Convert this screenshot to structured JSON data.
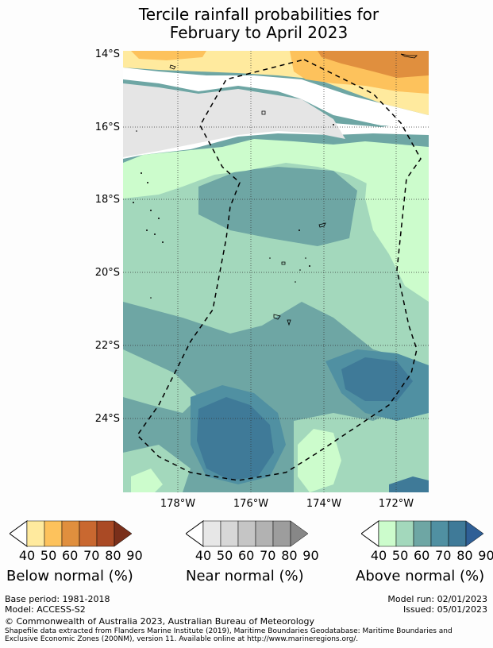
{
  "title": {
    "line1": "Tercile rainfall probabilities for",
    "line2": "February to April 2023"
  },
  "map": {
    "lat_labels": [
      "14°S",
      "16°S",
      "18°S",
      "20°S",
      "22°S",
      "24°S"
    ],
    "lon_labels": [
      "178°W",
      "176°W",
      "174°W",
      "172°W"
    ]
  },
  "legends": [
    {
      "title": "Below normal (%)",
      "ticks": [
        "40",
        "50",
        "60",
        "70",
        "80",
        "90"
      ],
      "colors": [
        "#ffea9e",
        "#fdc25c",
        "#e08f3e",
        "#c96830",
        "#aa4a25",
        "#7a2f1a"
      ]
    },
    {
      "title": "Near normal (%)",
      "ticks": [
        "40",
        "50",
        "60",
        "70",
        "80",
        "90"
      ],
      "colors": [
        "#e7e7e7",
        "#d7d7d7",
        "#c5c5c5",
        "#b2b2b2",
        "#9d9d9d",
        "#878787"
      ]
    },
    {
      "title": "Above normal (%)",
      "ticks": [
        "40",
        "50",
        "60",
        "70",
        "80",
        "90"
      ],
      "colors": [
        "#ccfccc",
        "#a3d8bc",
        "#6ea6a4",
        "#5090a2",
        "#3f7a98",
        "#2f5f96"
      ]
    }
  ],
  "footer": {
    "base_period": "Base period: 1981-2018",
    "model": "Model: ACCESS-S2",
    "model_run": "Model run: 02/01/2023",
    "issued": "Issued: 05/01/2023",
    "copyright": "© Commonwealth of Australia 2023, Australian Bureau of Meteorology",
    "shapefile_line1": "Shapefile data extracted from Flanders Marine Institute (2019), Maritime Boundaries Geodatabase: Maritime Boundaries and",
    "shapefile_line2": "Exclusive Economic Zones (200NM), version 11. Available online at http://www.marineregions.org/."
  }
}
